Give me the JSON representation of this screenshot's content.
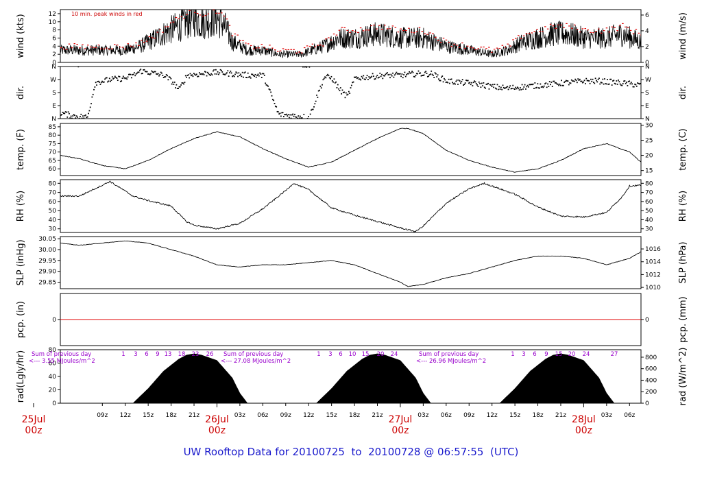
{
  "footer": {
    "prefix": "UW Rooftop Data for",
    "start": "20100725",
    "sep": "to",
    "end": "20100728",
    "at": "@",
    "time": "06:57:55",
    "zone": "(UTC)"
  },
  "chart_data": {
    "type": "line",
    "x_axis": {
      "start_hour": 3.5,
      "end_hour": 79.5,
      "hour_labels": [
        "09z",
        "12z",
        "15z",
        "18z",
        "21z",
        "03z",
        "06z",
        "09z",
        "12z",
        "15z",
        "18z",
        "21z",
        "03z",
        "06z",
        "09z",
        "12z",
        "15z",
        "18z",
        "21z",
        "03z",
        "06z"
      ],
      "hour_positions": [
        9,
        12,
        15,
        18,
        21,
        27,
        30,
        33,
        36,
        39,
        42,
        45,
        51,
        54,
        57,
        60,
        63,
        66,
        69,
        75,
        78
      ],
      "day_labels": [
        {
          "date": "25Jul",
          "time": "00z",
          "hour": 0
        },
        {
          "date": "26Jul",
          "time": "00z",
          "hour": 24
        },
        {
          "date": "27Jul",
          "time": "00z",
          "hour": 48
        },
        {
          "date": "28Jul",
          "time": "00z",
          "hour": 72
        }
      ]
    },
    "panels": [
      {
        "id": "wind",
        "ylabel_left": "wind (kts)",
        "ylabel_right": "wind (m/s)",
        "ylim": [
          0,
          13
        ],
        "left_ticks": [
          "0",
          "2",
          "4",
          "6",
          "8",
          "10",
          "12"
        ],
        "right_ticks": [
          "0",
          "2",
          "4",
          "6"
        ],
        "right_tick_values": [
          0,
          3.89,
          7.78,
          11.66
        ],
        "annotation": "10 min. peak winds in red",
        "series": [
          {
            "name": "wind",
            "x": [
              3.5,
              6,
              9,
              12,
              14,
              16,
              18,
              19,
              20,
              21,
              22,
              24,
              25,
              26,
              28,
              30,
              32,
              35,
              38,
              40,
              42,
              45,
              48,
              51,
              54,
              57,
              60,
              62,
              64,
              66,
              68,
              70,
              72,
              75,
              77,
              79.5
            ],
            "y": [
              3,
              3,
              3,
              3,
              4,
              6,
              8,
              9,
              10,
              11,
              10,
              11,
              9,
              5,
              3,
              3,
              2,
              2,
              4,
              6,
              6,
              7,
              6,
              6,
              4,
              3,
              2,
              3,
              5,
              6,
              7,
              7,
              6,
              6,
              7,
              5
            ]
          },
          {
            "name": "peak",
            "x": [
              3.5,
              6,
              9,
              12,
              14,
              16,
              18,
              19,
              20,
              21,
              22,
              24,
              25,
              26,
              28,
              30,
              32,
              35,
              38,
              40,
              42,
              45,
              48,
              51,
              54,
              57,
              60,
              62,
              64,
              66,
              68,
              70,
              72,
              75,
              77,
              79.5
            ],
            "y": [
              4,
              4,
              4,
              4,
              5,
              7,
              10,
              11,
              12,
              13,
              12,
              13,
              11,
              7,
              4,
              4,
              3,
              3,
              5,
              8,
              8,
              9,
              8,
              8,
              5,
              4,
              3,
              4,
              7,
              8,
              9,
              9,
              8,
              8,
              9,
              7
            ]
          }
        ]
      },
      {
        "id": "dir",
        "ylabel_left": "dir.",
        "ylabel_right": "dir.",
        "ylim": [
          0,
          360
        ],
        "left_ticks": [
          "N",
          "E",
          "S",
          "W",
          "N"
        ],
        "right_ticks": [
          "N",
          "E",
          "S",
          "W",
          "N"
        ],
        "tick_values": [
          0,
          90,
          180,
          270,
          360
        ],
        "series": [
          {
            "name": "dir",
            "x": [
              3.5,
              5,
              7,
              8,
              10,
              12,
              13,
              14,
              15,
              17,
              18,
              19,
              20,
              22,
              24,
              26,
              28,
              30,
              32,
              34,
              36,
              38,
              39,
              40,
              41,
              42,
              44,
              46,
              48,
              50,
              52,
              54,
              56,
              58,
              60,
              62,
              64,
              66,
              68,
              70,
              72,
              74,
              76,
              78,
              79.5
            ],
            "y": [
              40,
              20,
              10,
              250,
              270,
              280,
              300,
              330,
              320,
              300,
              260,
              200,
              300,
              310,
              320,
              310,
              300,
              300,
              30,
              20,
              10,
              290,
              280,
              200,
              150,
              280,
              290,
              300,
              300,
              310,
              310,
              260,
              250,
              240,
              220,
              210,
              220,
              230,
              240,
              250,
              260,
              260,
              250,
              240,
              230
            ]
          }
        ]
      },
      {
        "id": "temp",
        "ylabel_left": "temp. (F)",
        "ylabel_right": "temp. (C)",
        "ylim": [
          56,
          87
        ],
        "left_ticks": [
          "60",
          "65",
          "70",
          "75",
          "80",
          "85"
        ],
        "right_ticks": [
          "15",
          "20",
          "25",
          "30"
        ],
        "right_tick_values": [
          59,
          68,
          77,
          86
        ],
        "series": [
          {
            "name": "temp",
            "x": [
              3.5,
              6,
              9,
              12,
              15,
              18,
              21,
              24,
              27,
              30,
              33,
              36,
              39,
              42,
              45,
              48,
              49,
              51,
              54,
              57,
              60,
              63,
              66,
              69,
              72,
              75,
              78,
              79.5
            ],
            "y": [
              68,
              66,
              62,
              60,
              65,
              72,
              78,
              82,
              79,
              72,
              66,
              61,
              64,
              71,
              78,
              84,
              84,
              81,
              71,
              65,
              61,
              58,
              60,
              65,
              72,
              75,
              70,
              64
            ]
          }
        ]
      },
      {
        "id": "rh",
        "ylabel_left": "RH (%)",
        "ylabel_right": "RH (%)",
        "ylim": [
          26,
          84
        ],
        "left_ticks": [
          "30",
          "40",
          "50",
          "60",
          "70",
          "80"
        ],
        "right_ticks": [
          "30",
          "40",
          "50",
          "60",
          "70",
          "80"
        ],
        "series": [
          {
            "name": "rh",
            "x": [
              3.5,
              6,
              8,
              10,
              13,
              15,
              18,
              20,
              21,
              24,
              27,
              30,
              33,
              34,
              36,
              39,
              42,
              45,
              48,
              50,
              51,
              54,
              57,
              59,
              60,
              63,
              66,
              69,
              72,
              75,
              77,
              78,
              79.5
            ],
            "y": [
              66,
              66,
              74,
              82,
              66,
              61,
              55,
              38,
              34,
              30,
              36,
              52,
              72,
              80,
              73,
              53,
              45,
              38,
              31,
              27,
              33,
              58,
              74,
              80,
              77,
              68,
              54,
              44,
              43,
              48,
              65,
              77,
              78
            ]
          }
        ]
      },
      {
        "id": "slp",
        "ylabel_left": "SLP (inHg)",
        "ylabel_right": "SLP (hPa)",
        "ylim": [
          29.82,
          30.06
        ],
        "left_ticks": [
          "29.85",
          "29.90",
          "29.95",
          "30.00",
          "30.05"
        ],
        "right_ticks": [
          "1010",
          "1012",
          "1014",
          "1016"
        ],
        "right_tick_values": [
          29.826,
          29.885,
          29.944,
          30.003
        ],
        "series": [
          {
            "name": "slp",
            "x": [
              3.5,
              6,
              9,
              12,
              15,
              18,
              21,
              24,
              27,
              30,
              33,
              36,
              39,
              42,
              45,
              48,
              49,
              51,
              54,
              57,
              60,
              63,
              66,
              69,
              72,
              75,
              78,
              79.5
            ],
            "y": [
              30.03,
              30.02,
              30.03,
              30.04,
              30.03,
              30.0,
              29.97,
              29.93,
              29.92,
              29.93,
              29.93,
              29.94,
              29.95,
              29.93,
              29.89,
              29.85,
              29.83,
              29.84,
              29.87,
              29.89,
              29.92,
              29.95,
              29.97,
              29.97,
              29.96,
              29.93,
              29.96,
              29.99
            ]
          }
        ]
      },
      {
        "id": "pcp",
        "ylabel_left": "pcp. (in)",
        "ylabel_right": "pcp. (mm)",
        "ylim": [
          -1,
          1
        ],
        "left_ticks": [
          "0"
        ],
        "right_ticks": [
          "0"
        ],
        "series": [
          {
            "name": "pcp",
            "x": [
              3.5,
              79.5
            ],
            "y": [
              0,
              0
            ]
          }
        ]
      },
      {
        "id": "rad",
        "ylabel_left": "rad(Lgly/hr)",
        "ylabel_right": "rad (W/m^2)",
        "ylim": [
          0,
          80
        ],
        "left_ticks": [
          "0",
          "20",
          "40",
          "60",
          "80"
        ],
        "right_ticks": [
          "0",
          "200",
          "400",
          "600",
          "800"
        ],
        "right_tick_values": [
          0,
          17.2,
          34.4,
          51.6,
          68.8
        ],
        "series": [
          {
            "name": "rad",
            "x": [
              3.5,
              13,
              15,
              17,
              19,
              20,
              21,
              22,
              24,
              26,
              27,
              28,
              37,
              39,
              41,
              43,
              44,
              45,
              46,
              48,
              50,
              51,
              52,
              61,
              63,
              65,
              67,
              68,
              69,
              70,
              72,
              74,
              75,
              76,
              79.5
            ],
            "y": [
              0,
              0,
              22,
              48,
              66,
              72,
              74,
              72,
              64,
              38,
              15,
              0,
              0,
              22,
              48,
              66,
              72,
              74,
              72,
              64,
              38,
              15,
              0,
              0,
              22,
              48,
              66,
              72,
              74,
              72,
              64,
              38,
              15,
              0,
              0
            ]
          }
        ],
        "daily_notes": [
          {
            "title": "Sum of previous day",
            "value": "<--- 3.55 MJoules/m^2",
            "hours": [
              "1",
              "3",
              "6",
              "9",
              "13",
              "18",
              "23",
              "26"
            ]
          },
          {
            "title": "Sum of previous day",
            "value": "<--- 27.08 MJoules/m^2",
            "hours": [
              "1",
              "3",
              "6",
              "10",
              "15",
              "20",
              "24"
            ]
          },
          {
            "title": "Sum of previous day",
            "value": "<--- 26.96 MJoules/m^2",
            "hours": [
              "1",
              "3",
              "6",
              "9",
              "15",
              "20",
              "24",
              "27"
            ]
          }
        ]
      }
    ]
  }
}
